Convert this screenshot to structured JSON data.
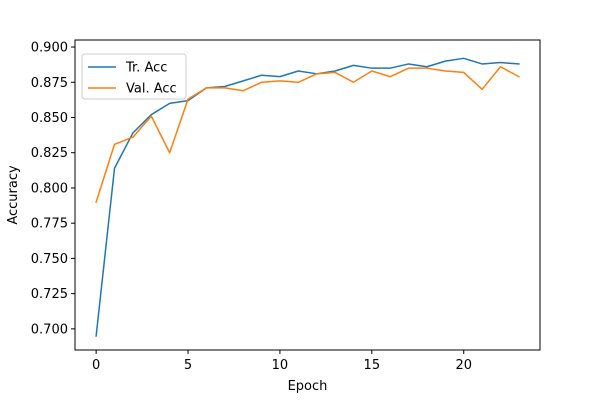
{
  "chart_data": {
    "type": "line",
    "title": "",
    "xlabel": "Epoch",
    "ylabel": "Accuracy",
    "xlim": [
      -1.15,
      24.15
    ],
    "ylim": [
      0.685,
      0.905
    ],
    "xticks": [
      "0",
      "5",
      "10",
      "15",
      "20"
    ],
    "yticks": [
      "0.700",
      "0.725",
      "0.750",
      "0.775",
      "0.800",
      "0.825",
      "0.850",
      "0.875",
      "0.900"
    ],
    "grid": false,
    "legend_position": "top-left",
    "x": [
      0,
      1,
      2,
      3,
      4,
      5,
      6,
      7,
      8,
      9,
      10,
      11,
      12,
      13,
      14,
      15,
      16,
      17,
      18,
      19,
      20,
      21,
      22,
      23
    ],
    "series": [
      {
        "name": "Tr. Acc",
        "color": "#1f77b4",
        "values": [
          0.695,
          0.814,
          0.839,
          0.852,
          0.86,
          0.862,
          0.871,
          0.872,
          0.876,
          0.88,
          0.879,
          0.883,
          0.881,
          0.883,
          0.887,
          0.885,
          0.885,
          0.888,
          0.886,
          0.89,
          0.892,
          0.888,
          0.889,
          0.888
        ]
      },
      {
        "name": "Val. Acc",
        "color": "#ff7f0e",
        "values": [
          0.79,
          0.831,
          0.836,
          0.851,
          0.825,
          0.863,
          0.871,
          0.871,
          0.869,
          0.875,
          0.876,
          0.875,
          0.881,
          0.882,
          0.875,
          0.883,
          0.879,
          0.885,
          0.885,
          0.883,
          0.882,
          0.87,
          0.886,
          0.879
        ]
      }
    ]
  }
}
